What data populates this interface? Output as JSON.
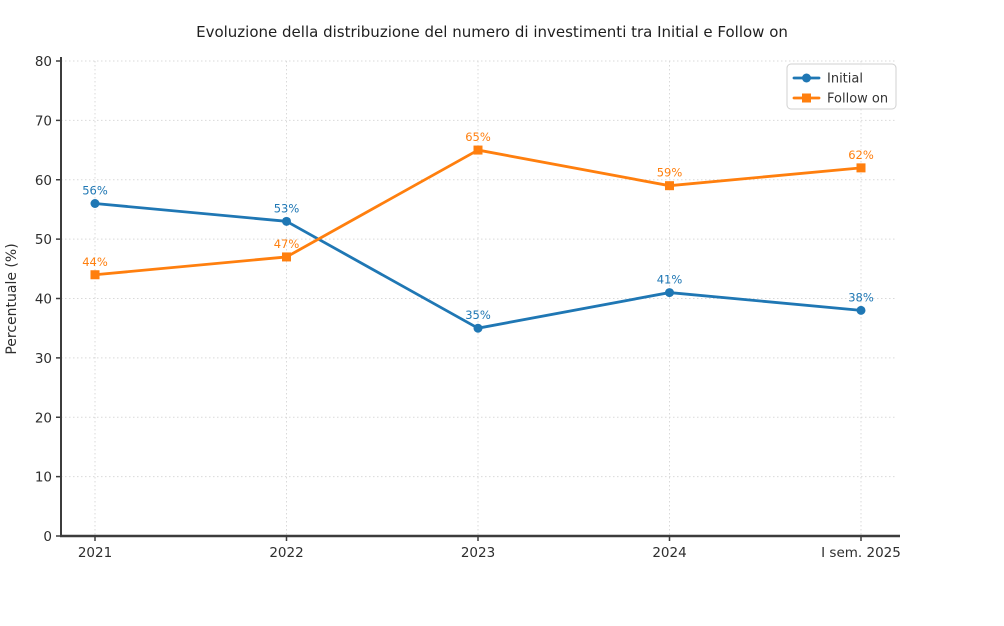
{
  "chart_data": {
    "type": "line",
    "title": "Evoluzione della distribuzione del numero di investimenti tra Initial e Follow on",
    "xlabel": "",
    "ylabel": "Percentuale (%)",
    "categories": [
      "2021",
      "2022",
      "2023",
      "2024",
      "I sem. 2025"
    ],
    "series": [
      {
        "name": "Initial",
        "color": "#1f77b4",
        "marker": "circle",
        "values": [
          56,
          53,
          35,
          41,
          38
        ],
        "labels": [
          "56%",
          "53%",
          "35%",
          "41%",
          "38%"
        ]
      },
      {
        "name": "Follow on",
        "color": "#ff7f0e",
        "marker": "square",
        "values": [
          44,
          47,
          65,
          59,
          62
        ],
        "labels": [
          "44%",
          "47%",
          "65%",
          "59%",
          "62%"
        ]
      }
    ],
    "ylim": [
      0,
      80
    ],
    "yticks": [
      0,
      10,
      20,
      30,
      40,
      50,
      60,
      70,
      80
    ],
    "grid": true,
    "grid_style": "dotted",
    "legend_position": "upper right",
    "colors": {
      "grid": "#d9d9d9",
      "spine": "#3c3c3c",
      "background": "#ffffff"
    }
  }
}
